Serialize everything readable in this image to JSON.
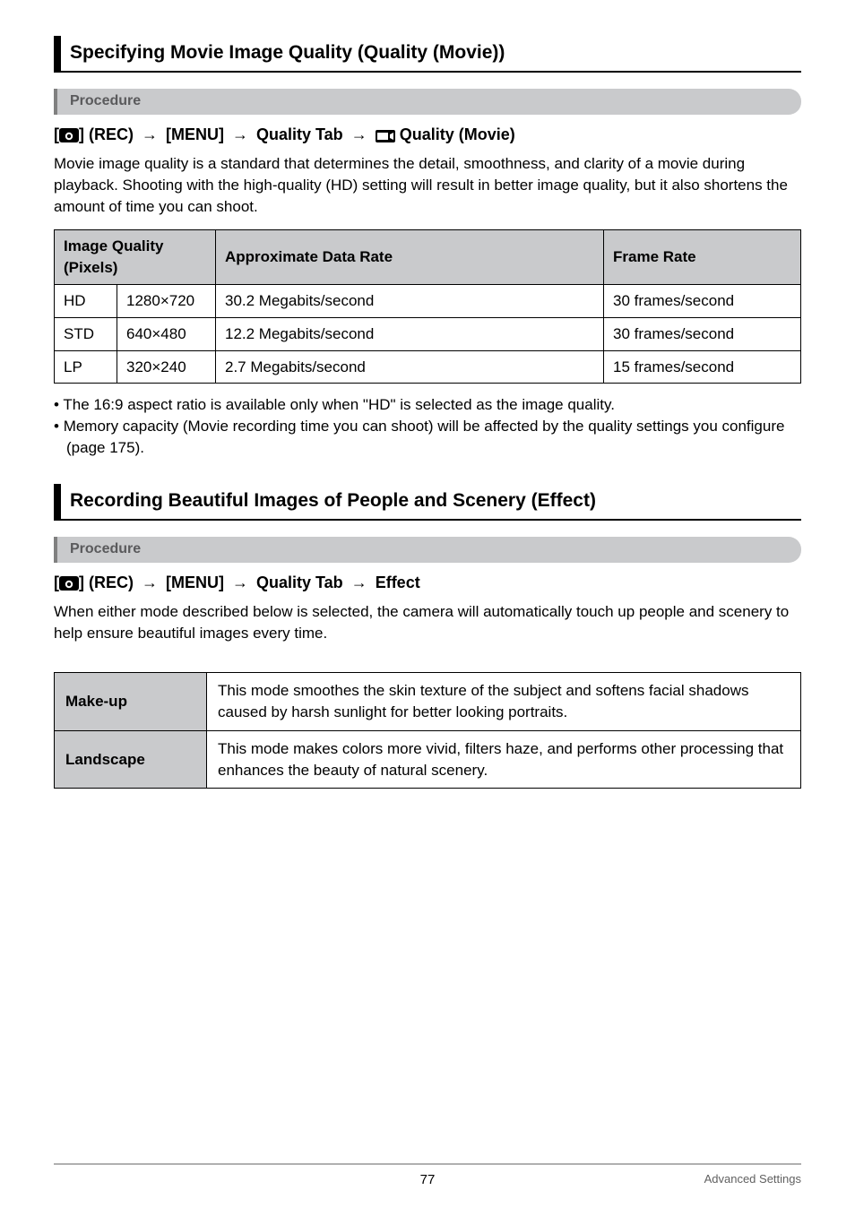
{
  "section1": {
    "title": "Specifying Movie Image Quality (Quality (Movie))",
    "procedure_label": "Procedure",
    "path_parts": [
      "[",
      "ICON_CAM",
      "] (REC) ",
      "→",
      " [MENU] ",
      "→",
      " Quality Tab ",
      "→",
      " ",
      "ICON_MOVIE",
      " Quality (Movie)"
    ],
    "intro": "Movie image quality is a standard that determines the detail, smoothness, and clarity of a movie during playback. Shooting with the high-quality (HD) setting will result in better image quality, but it also shortens the amount of time you can shoot.",
    "table": {
      "headers": [
        "Image Quality (Pixels)",
        "Approximate Data Rate",
        "Frame Rate"
      ],
      "col0_span": 2,
      "rows": [
        [
          "HD",
          "1280×720",
          "30.2 Megabits/second",
          "30 frames/second"
        ],
        [
          "STD",
          "640×480",
          "12.2 Megabits/second",
          "30 frames/second"
        ],
        [
          "LP",
          "320×240",
          "2.7 Megabits/second",
          "15 frames/second"
        ]
      ],
      "col_widths": [
        "70px",
        "110px",
        "auto",
        "220px"
      ]
    },
    "bullets": [
      "The 16:9 aspect ratio is available only when \"HD\" is selected as the image quality.",
      "Memory capacity (Movie recording time you can shoot) will be affected by the quality settings you configure (page 175)."
    ]
  },
  "section2": {
    "title": "Recording Beautiful Images of People and Scenery (Effect)",
    "procedure_label": "Procedure",
    "path_parts": [
      "[",
      "ICON_CAM",
      "] (REC) ",
      "→",
      " [MENU] ",
      "→",
      " Quality Tab ",
      "→",
      " Effect"
    ],
    "intro": "When either mode described below is selected, the camera will automatically touch up people and scenery to help ensure beautiful images every time.",
    "rows": [
      {
        "label": "Make-up",
        "desc": "This mode smoothes the skin texture of the subject and softens facial shadows caused by harsh sunlight for better looking portraits."
      },
      {
        "label": "Landscape",
        "desc": "This mode makes colors more vivid, filters haze, and performs other processing that enhances the beauty of natural scenery."
      }
    ]
  },
  "footer": {
    "page": "77",
    "right": "Advanced Settings"
  }
}
